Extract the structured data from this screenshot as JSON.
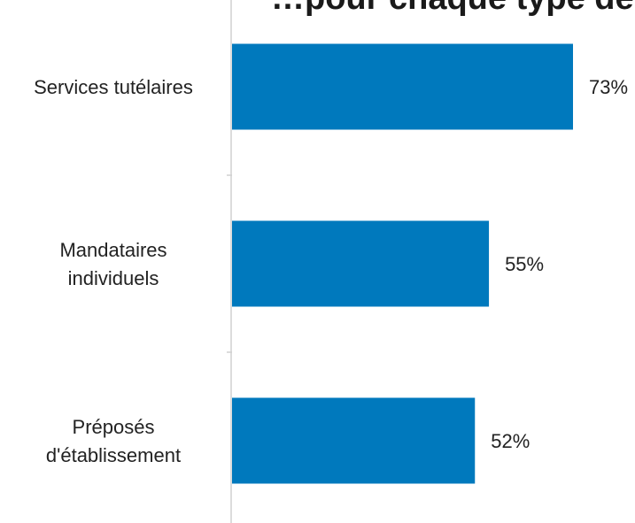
{
  "chart_data": {
    "type": "bar",
    "orientation": "horizontal",
    "title": "…pour chaque type de…",
    "categories": [
      [
        "Services tutélaires"
      ],
      [
        "Mandataires",
        "individuels"
      ],
      [
        "Préposés",
        "d'établissement"
      ]
    ],
    "values": [
      73,
      55,
      52
    ],
    "value_labels": [
      "73%",
      "55%",
      "52%"
    ],
    "xlim": [
      0,
      100
    ],
    "grid": false,
    "legend": "none",
    "colors": {
      "bar": "#0079BD",
      "axis": "#d0d0d0",
      "text": "#222222"
    }
  }
}
